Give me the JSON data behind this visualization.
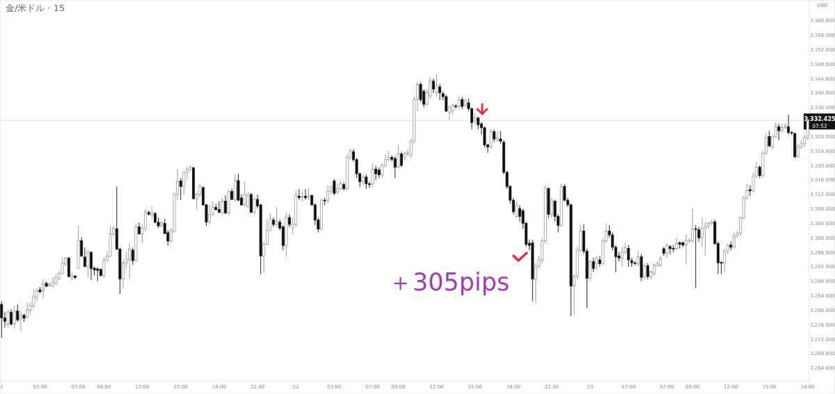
{
  "chart_data": {
    "type": "candlestick",
    "title": "金/米ドル · 15",
    "ylabel": "USD",
    "annotations": [
      "＋305pips",
      "07:52"
    ],
    "ylim": [
      3260.5,
      3365.7
    ],
    "yticks": [
      {
        "value": 3264,
        "label": "3,264.000"
      },
      {
        "value": 3268,
        "label": "3,268.000"
      },
      {
        "value": 3272,
        "label": "3,272.000"
      },
      {
        "value": 3276,
        "label": "3,276.000"
      },
      {
        "value": 3280,
        "label": "3,280.000"
      },
      {
        "value": 3284,
        "label": "3,284.000"
      },
      {
        "value": 3288,
        "label": "3,288.000"
      },
      {
        "value": 3292,
        "label": "3,292.000"
      },
      {
        "value": 3296,
        "label": "3,296.000"
      },
      {
        "value": 3300,
        "label": "3,300.000"
      },
      {
        "value": 3304,
        "label": "3,304.000"
      },
      {
        "value": 3308,
        "label": "3,308.000"
      },
      {
        "value": 3312,
        "label": "3,312.000"
      },
      {
        "value": 3316,
        "label": "3,316.000"
      },
      {
        "value": 3320,
        "label": "3,320.000"
      },
      {
        "value": 3324,
        "label": "3,324.000"
      },
      {
        "value": 3328,
        "label": "3,328.000"
      },
      {
        "value": 3336,
        "label": "3,336.000"
      },
      {
        "value": 3340,
        "label": "3,340.000"
      },
      {
        "value": 3344,
        "label": "3,344.000"
      },
      {
        "value": 3348,
        "label": "3,348.000"
      },
      {
        "value": 3352,
        "label": "3,352.000"
      },
      {
        "value": 3356,
        "label": "3,356.000"
      },
      {
        "value": 3360,
        "label": "3,360.000"
      }
    ],
    "ref_lines": [
      {
        "axis": "y",
        "value": 3332.425,
        "label": "3,332.425",
        "color": "#e0e0e0"
      }
    ],
    "categories": [
      "1",
      null,
      null,
      null,
      null,
      null,
      null,
      null,
      null,
      null,
      null,
      null,
      "03:00",
      null,
      null,
      null,
      null,
      null,
      null,
      null,
      null,
      null,
      null,
      null,
      "07:00",
      null,
      null,
      null,
      null,
      null,
      null,
      null,
      "09:00",
      null,
      null,
      null,
      null,
      null,
      null,
      null,
      null,
      null,
      null,
      null,
      "12:00",
      null,
      null,
      null,
      null,
      null,
      null,
      null,
      null,
      null,
      null,
      null,
      "15:00",
      null,
      null,
      null,
      null,
      null,
      null,
      null,
      null,
      null,
      null,
      null,
      "18:00",
      null,
      null,
      null,
      null,
      null,
      null,
      null,
      null,
      null,
      null,
      null,
      "21:00",
      null,
      null,
      null,
      null,
      null,
      null,
      null,
      null,
      null,
      null,
      null,
      "22",
      null,
      null,
      null,
      null,
      null,
      null,
      null,
      null,
      null,
      null,
      null,
      "03:00",
      null,
      null,
      null,
      null,
      null,
      null,
      null,
      null,
      null,
      null,
      null,
      "07:00",
      null,
      null,
      null,
      null,
      null,
      null,
      null,
      "09:00",
      null,
      null,
      null,
      null,
      null,
      null,
      null,
      null,
      null,
      null,
      null,
      "12:00",
      null,
      null,
      null,
      null,
      null,
      null,
      null,
      null,
      null,
      null,
      null,
      "15:00",
      null,
      null,
      null,
      null,
      null,
      null,
      null,
      null,
      null,
      null,
      null,
      "18:00",
      null,
      null,
      null,
      null,
      null,
      null,
      null,
      null,
      null,
      null,
      null,
      "21:00",
      null,
      null,
      null,
      null,
      null,
      null,
      null,
      null,
      null,
      null,
      null,
      "23",
      null,
      null,
      null,
      null,
      null,
      null,
      null,
      null,
      null,
      null,
      null,
      "03:00",
      null,
      null,
      null,
      null,
      null,
      null,
      null,
      null,
      null,
      null,
      null,
      "07:00",
      null,
      null,
      null,
      null,
      null,
      null,
      null,
      "09:00",
      null,
      null,
      null,
      null,
      null,
      null,
      null,
      null,
      null,
      null,
      null,
      "12:00",
      null,
      null,
      null,
      null,
      null,
      null,
      null,
      null,
      null,
      null,
      null,
      "15:00",
      null,
      null,
      null,
      null,
      null,
      null,
      null,
      null,
      null,
      null,
      null,
      "18:00"
    ],
    "ohlc": [
      [
        3281.6,
        3282.5,
        3272.3,
        3277.9
      ],
      [
        3277.9,
        3279.4,
        3275.2,
        3276.9
      ],
      [
        3276.2,
        3280.0,
        3275.2,
        3279.5
      ],
      [
        3279.4,
        3280.3,
        3275.8,
        3276.2
      ],
      [
        3276.2,
        3281.3,
        3274.9,
        3279.7
      ],
      [
        3279.8,
        3281.6,
        3276.8,
        3277.3
      ],
      [
        3277.6,
        3279.7,
        3274.2,
        3278.6
      ],
      [
        3278.6,
        3279.0,
        3276.8,
        3277.8
      ],
      [
        3278.1,
        3282.2,
        3277.8,
        3280.0
      ],
      [
        3280.0,
        3282.2,
        3278.7,
        3281.3
      ],
      [
        3281.1,
        3285.7,
        3280.6,
        3283.8
      ],
      [
        3283.5,
        3286.1,
        3282.5,
        3285.4
      ],
      [
        3285.6,
        3286.4,
        3284.6,
        3285.1
      ],
      [
        3285.4,
        3288.6,
        3283.2,
        3287.3
      ],
      [
        3287.4,
        3288.0,
        3286.4,
        3286.6
      ],
      [
        3286.8,
        3287.7,
        3286.4,
        3287.2
      ],
      [
        3286.6,
        3289.0,
        3286.4,
        3287.7
      ],
      [
        3287.4,
        3289.9,
        3287.0,
        3289.0
      ],
      [
        3288.6,
        3290.9,
        3288.3,
        3290.2
      ],
      [
        3290.2,
        3294.4,
        3289.9,
        3293.1
      ],
      [
        3292.8,
        3294.7,
        3292.2,
        3294.4
      ],
      [
        3294.4,
        3294.7,
        3289.0,
        3289.3
      ],
      [
        3289.1,
        3290.5,
        3288.3,
        3289.5
      ],
      [
        3289.5,
        3289.6,
        3288.6,
        3289.0
      ],
      [
        3291.5,
        3303.3,
        3291.5,
        3299.2
      ],
      [
        3299.2,
        3300.1,
        3294.7,
        3295.0
      ],
      [
        3294.7,
        3297.3,
        3291.8,
        3292.1
      ],
      [
        3292.1,
        3296.6,
        3289.0,
        3296.0
      ],
      [
        3296.0,
        3296.3,
        3288.3,
        3291.5
      ],
      [
        3291.6,
        3292.1,
        3289.6,
        3291.1
      ],
      [
        3291.4,
        3291.8,
        3288.0,
        3291.0
      ],
      [
        3291.3,
        3291.5,
        3289.3,
        3289.6
      ],
      [
        3289.6,
        3294.7,
        3289.0,
        3293.7
      ],
      [
        3293.7,
        3296.3,
        3293.4,
        3295.0
      ],
      [
        3295.0,
        3303.3,
        3294.7,
        3301.1
      ],
      [
        3301.1,
        3303.3,
        3300.5,
        3302.7
      ],
      [
        3302.5,
        3314.2,
        3296.6,
        3296.9
      ],
      [
        3296.9,
        3297.3,
        3284.5,
        3288.6
      ],
      [
        3288.6,
        3294.1,
        3286.1,
        3293.1
      ],
      [
        3293.1,
        3296.0,
        3291.5,
        3294.1
      ],
      [
        3294.1,
        3298.5,
        3288.6,
        3296.9
      ],
      [
        3296.6,
        3297.3,
        3292.5,
        3293.7
      ],
      [
        3293.7,
        3303.7,
        3293.4,
        3303.0
      ],
      [
        3303.0,
        3304.3,
        3300.8,
        3301.1
      ],
      [
        3301.1,
        3303.7,
        3298.5,
        3302.7
      ],
      [
        3302.7,
        3308.1,
        3301.8,
        3307.2
      ],
      [
        3307.0,
        3307.5,
        3306.2,
        3306.5
      ],
      [
        3306.2,
        3308.8,
        3305.3,
        3306.8
      ],
      [
        3306.7,
        3307.2,
        3304.0,
        3304.3
      ],
      [
        3304.3,
        3305.6,
        3302.7,
        3303.3
      ],
      [
        3303.3,
        3304.6,
        3303.0,
        3304.2
      ],
      [
        3304.0,
        3305.3,
        3301.0,
        3301.2
      ],
      [
        3301.4,
        3302.1,
        3297.9,
        3299.1
      ],
      [
        3299.1,
        3302.7,
        3298.5,
        3302.1
      ],
      [
        3301.8,
        3312.6,
        3301.4,
        3312.0
      ],
      [
        3312.0,
        3319.0,
        3310.4,
        3315.5
      ],
      [
        3315.7,
        3316.5,
        3310.4,
        3314.2
      ],
      [
        3314.2,
        3318.4,
        3312.0,
        3318.1
      ],
      [
        3318.1,
        3319.7,
        3316.1,
        3319.0
      ],
      [
        3319.0,
        3320.0,
        3318.4,
        3319.5
      ],
      [
        3319.3,
        3319.7,
        3310.7,
        3310.8
      ],
      [
        3310.8,
        3312.6,
        3307.8,
        3312.0
      ],
      [
        3312.0,
        3314.9,
        3311.3,
        3314.2
      ],
      [
        3313.9,
        3314.2,
        3308.8,
        3309.1
      ],
      [
        3309.1,
        3309.4,
        3303.3,
        3304.4
      ],
      [
        3304.4,
        3309.1,
        3303.7,
        3306.5
      ],
      [
        3306.5,
        3310.1,
        3306.2,
        3308.5
      ],
      [
        3308.4,
        3309.4,
        3307.5,
        3307.8
      ],
      [
        3307.8,
        3310.1,
        3306.9,
        3307.0
      ],
      [
        3306.9,
        3311.0,
        3306.5,
        3310.1
      ],
      [
        3310.1,
        3311.7,
        3306.5,
        3306.9
      ],
      [
        3306.9,
        3313.3,
        3306.2,
        3312.9
      ],
      [
        3312.8,
        3313.6,
        3310.4,
        3310.6
      ],
      [
        3310.6,
        3317.4,
        3310.1,
        3315.8
      ],
      [
        3315.8,
        3317.7,
        3310.1,
        3310.4
      ],
      [
        3311.0,
        3312.0,
        3308.8,
        3309.1
      ],
      [
        3309.1,
        3315.5,
        3308.5,
        3312.0
      ],
      [
        3308.8,
        3312.6,
        3308.1,
        3311.7
      ],
      [
        3312.0,
        3312.3,
        3306.9,
        3307.0
      ],
      [
        3307.0,
        3311.3,
        3306.5,
        3310.6
      ],
      [
        3310.6,
        3312.0,
        3308.1,
        3308.8
      ],
      [
        3309.1,
        3309.4,
        3289.9,
        3295.0
      ],
      [
        3295.0,
        3298.9,
        3290.2,
        3298.2
      ],
      [
        3298.2,
        3304.9,
        3297.9,
        3302.1
      ],
      [
        3302.1,
        3306.9,
        3301.8,
        3305.1
      ],
      [
        3304.9,
        3305.6,
        3303.0,
        3303.7
      ],
      [
        3303.7,
        3308.5,
        3303.0,
        3304.6
      ],
      [
        3304.3,
        3305.0,
        3302.0,
        3302.7
      ],
      [
        3303.0,
        3303.5,
        3296.5,
        3297.9
      ],
      [
        3297.9,
        3307.0,
        3294.7,
        3305.6
      ],
      [
        3305.6,
        3306.5,
        3303.0,
        3303.7
      ],
      [
        3302.7,
        3305.5,
        3301.0,
        3303.7
      ],
      [
        3303.7,
        3313.0,
        3303.0,
        3311.7
      ],
      [
        3311.5,
        3313.5,
        3310.5,
        3311.1
      ],
      [
        3311.1,
        3313.0,
        3310.0,
        3311.5
      ],
      [
        3311.5,
        3313.5,
        3310.5,
        3311.1
      ],
      [
        3311.2,
        3313.8,
        3310.5,
        3311.7
      ],
      [
        3311.7,
        3312.0,
        3308.8,
        3309.1
      ],
      [
        3309.1,
        3309.5,
        3303.5,
        3304.9
      ],
      [
        3304.9,
        3305.5,
        3301.5,
        3302.4
      ],
      [
        3302.4,
        3311.0,
        3302.0,
        3310.4
      ],
      [
        3310.4,
        3311.0,
        3309.0,
        3310.2
      ],
      [
        3310.4,
        3314.5,
        3309.5,
        3312.9
      ],
      [
        3312.9,
        3314.5,
        3312.0,
        3313.9
      ],
      [
        3315.7,
        3316.3,
        3311.8,
        3312.3
      ],
      [
        3312.6,
        3315.0,
        3312.0,
        3313.6
      ],
      [
        3313.6,
        3316.0,
        3313.0,
        3314.9
      ],
      [
        3314.7,
        3315.3,
        3313.0,
        3313.6
      ],
      [
        3313.6,
        3323.0,
        3313.0,
        3322.2
      ],
      [
        3322.2,
        3324.6,
        3321.5,
        3324.1
      ],
      [
        3323.8,
        3324.5,
        3321.0,
        3321.6
      ],
      [
        3321.6,
        3322.0,
        3316.5,
        3317.7
      ],
      [
        3317.7,
        3318.0,
        3314.0,
        3315.5
      ],
      [
        3315.5,
        3317.5,
        3314.5,
        3316.8
      ],
      [
        3316.8,
        3317.5,
        3313.5,
        3314.9
      ],
      [
        3314.9,
        3315.5,
        3313.8,
        3314.7
      ],
      [
        3314.9,
        3320.5,
        3314.0,
        3319.0
      ],
      [
        3319.0,
        3320.0,
        3316.0,
        3317.7
      ],
      [
        3318.7,
        3319.5,
        3316.5,
        3317.4
      ],
      [
        3317.4,
        3320.5,
        3316.5,
        3320.0
      ],
      [
        3320.0,
        3323.0,
        3319.5,
        3321.6
      ],
      [
        3321.6,
        3324.0,
        3321.0,
        3322.2
      ],
      [
        3322.2,
        3322.8,
        3321.0,
        3321.7
      ],
      [
        3321.9,
        3322.5,
        3316.5,
        3319.5
      ],
      [
        3319.5,
        3325.5,
        3319.0,
        3323.2
      ],
      [
        3323.2,
        3323.8,
        3319.5,
        3320.0
      ],
      [
        3322.2,
        3323.8,
        3321.5,
        3323.2
      ],
      [
        3323.2,
        3324.5,
        3322.5,
        3323.5
      ],
      [
        3322.9,
        3327.5,
        3322.0,
        3326.7
      ],
      [
        3326.7,
        3339.0,
        3326.0,
        3338.2
      ],
      [
        3338.2,
        3343.0,
        3335.0,
        3342.4
      ],
      [
        3342.4,
        3343.0,
        3337.5,
        3338.2
      ],
      [
        3340.5,
        3341.0,
        3336.0,
        3336.9
      ],
      [
        3336.9,
        3341.0,
        3336.5,
        3340.1
      ],
      [
        3339.2,
        3344.5,
        3338.5,
        3343.3
      ],
      [
        3343.3,
        3344.0,
        3340.0,
        3341.1
      ],
      [
        3340.1,
        3345.3,
        3339.0,
        3342.0
      ],
      [
        3341.7,
        3342.5,
        3338.0,
        3340.1
      ],
      [
        3339.8,
        3340.5,
        3338.0,
        3339.0
      ],
      [
        3339.0,
        3339.5,
        3334.8,
        3335.0
      ],
      [
        3334.7,
        3336.5,
        3332.5,
        3336.0
      ],
      [
        3335.0,
        3337.0,
        3334.0,
        3336.6
      ],
      [
        3336.4,
        3337.0,
        3335.8,
        3336.2
      ],
      [
        3336.3,
        3339.0,
        3335.8,
        3338.2
      ],
      [
        3338.2,
        3339.0,
        3335.5,
        3336.3
      ],
      [
        3336.6,
        3338.5,
        3336.0,
        3337.9
      ],
      [
        3337.3,
        3338.5,
        3335.0,
        3335.7
      ],
      [
        3335.7,
        3336.0,
        3330.0,
        3331.8
      ],
      [
        3332.4,
        3334.5,
        3331.5,
        3333.1
      ],
      [
        3333.1,
        3333.5,
        3330.0,
        3331.2
      ],
      [
        3331.5,
        3332.0,
        3328.5,
        3330.4
      ],
      [
        3330.4,
        3330.8,
        3325.0,
        3325.7
      ],
      [
        3325.7,
        3326.0,
        3323.5,
        3325.1
      ],
      [
        3325.1,
        3330.0,
        3324.5,
        3329.3
      ],
      [
        3329.3,
        3330.0,
        3326.5,
        3327.3
      ],
      [
        3327.0,
        3329.5,
        3326.5,
        3327.6
      ],
      [
        3327.3,
        3329.5,
        3326.0,
        3326.7
      ],
      [
        3326.4,
        3327.0,
        3317.5,
        3318.1
      ],
      [
        3318.1,
        3318.5,
        3313.5,
        3314.2
      ],
      [
        3314.2,
        3314.5,
        3309.5,
        3310.4
      ],
      [
        3310.4,
        3311.0,
        3306.5,
        3307.2
      ],
      [
        3305.9,
        3310.0,
        3305.5,
        3309.1
      ],
      [
        3308.1,
        3309.0,
        3304.5,
        3305.9
      ],
      [
        3307.5,
        3308.0,
        3302.5,
        3304.0
      ],
      [
        3304.0,
        3304.5,
        3297.5,
        3298.2
      ],
      [
        3298.5,
        3299.5,
        3296.5,
        3297.9
      ],
      [
        3298.6,
        3299.5,
        3282.5,
        3288.6
      ],
      [
        3288.6,
        3293.0,
        3281.9,
        3292.2
      ],
      [
        3292.2,
        3295.0,
        3291.5,
        3293.9
      ],
      [
        3293.9,
        3300.0,
        3293.0,
        3299.2
      ],
      [
        3299.2,
        3314.5,
        3298.5,
        3313.8
      ],
      [
        3313.6,
        3314.0,
        3305.5,
        3306.5
      ],
      [
        3306.5,
        3311.0,
        3305.5,
        3310.4
      ],
      [
        3310.1,
        3310.5,
        3304.5,
        3305.9
      ],
      [
        3305.9,
        3306.5,
        3301.5,
        3303.4
      ],
      [
        3303.4,
        3315.0,
        3303.0,
        3314.2
      ],
      [
        3314.2,
        3314.8,
        3310.0,
        3310.4
      ],
      [
        3310.4,
        3311.0,
        3308.5,
        3309.1
      ],
      [
        3309.1,
        3309.5,
        3278.4,
        3286.7
      ],
      [
        3286.7,
        3290.0,
        3278.7,
        3289.3
      ],
      [
        3289.3,
        3297.5,
        3288.5,
        3296.6
      ],
      [
        3296.6,
        3303.5,
        3296.0,
        3301.9
      ],
      [
        3301.9,
        3303.7,
        3295.5,
        3296.3
      ],
      [
        3296.3,
        3297.0,
        3280.6,
        3288.8
      ],
      [
        3288.8,
        3294.0,
        3288.0,
        3293.4
      ],
      [
        3293.4,
        3294.5,
        3290.5,
        3291.5
      ],
      [
        3292.8,
        3295.0,
        3291.0,
        3294.4
      ],
      [
        3293.9,
        3295.0,
        3292.0,
        3292.9
      ],
      [
        3292.9,
        3299.8,
        3292.5,
        3299.2
      ],
      [
        3299.2,
        3304.0,
        3298.5,
        3301.9
      ],
      [
        3301.9,
        3303.5,
        3300.0,
        3300.8
      ],
      [
        3300.8,
        3301.5,
        3296.5,
        3297.4
      ],
      [
        3297.4,
        3298.0,
        3290.5,
        3294.8
      ],
      [
        3295.0,
        3296.0,
        3293.5,
        3294.4
      ],
      [
        3294.4,
        3297.5,
        3292.0,
        3296.0
      ],
      [
        3296.0,
        3298.5,
        3295.5,
        3297.3
      ],
      [
        3297.1,
        3298.0,
        3292.0,
        3293.9
      ],
      [
        3293.7,
        3294.5,
        3292.0,
        3293.1
      ],
      [
        3293.1,
        3293.5,
        3292.5,
        3292.9
      ],
      [
        3292.9,
        3296.5,
        3292.0,
        3294.7
      ],
      [
        3294.8,
        3295.5,
        3288.0,
        3289.1
      ],
      [
        3289.1,
        3293.0,
        3288.5,
        3292.3
      ],
      [
        3292.3,
        3293.0,
        3288.5,
        3289.3
      ],
      [
        3289.3,
        3291.0,
        3288.5,
        3290.6
      ],
      [
        3290.2,
        3293.0,
        3289.5,
        3292.5
      ],
      [
        3292.3,
        3293.5,
        3292.0,
        3292.8
      ],
      [
        3292.5,
        3295.0,
        3292.0,
        3294.1
      ],
      [
        3297.0,
        3297.5,
        3295.0,
        3295.7
      ],
      [
        3295.7,
        3298.5,
        3294.5,
        3297.8
      ],
      [
        3297.6,
        3298.0,
        3295.5,
        3297.0
      ],
      [
        3297.1,
        3298.0,
        3296.0,
        3296.9
      ],
      [
        3297.0,
        3300.0,
        3296.5,
        3298.4
      ],
      [
        3298.7,
        3299.0,
        3297.0,
        3298.2
      ],
      [
        3298.6,
        3299.0,
        3297.5,
        3298.0
      ],
      [
        3298.0,
        3301.0,
        3292.8,
        3299.3
      ],
      [
        3299.1,
        3300.0,
        3298.5,
        3299.3
      ],
      [
        3299.2,
        3308.2,
        3298.5,
        3302.4
      ],
      [
        3302.5,
        3303.5,
        3286.1,
        3302.3
      ],
      [
        3302.2,
        3303.0,
        3299.0,
        3300.0
      ],
      [
        3300.0,
        3305.6,
        3297.5,
        3302.7
      ],
      [
        3302.7,
        3304.5,
        3295.0,
        3303.3
      ],
      [
        3303.3,
        3304.5,
        3302.5,
        3304.0
      ],
      [
        3304.0,
        3305.0,
        3303.5,
        3304.4
      ],
      [
        3304.4,
        3305.0,
        3298.0,
        3298.4
      ],
      [
        3298.4,
        3299.0,
        3290.0,
        3293.1
      ],
      [
        3293.2,
        3293.5,
        3290.0,
        3293.0
      ],
      [
        3293.0,
        3297.0,
        3290.5,
        3296.3
      ],
      [
        3296.3,
        3298.5,
        3295.5,
        3298.0
      ],
      [
        3298.0,
        3299.0,
        3296.5,
        3297.4
      ],
      [
        3297.4,
        3301.5,
        3297.0,
        3300.5
      ],
      [
        3300.5,
        3302.0,
        3300.0,
        3301.2
      ],
      [
        3301.2,
        3306.0,
        3300.5,
        3305.5
      ],
      [
        3305.5,
        3311.5,
        3305.0,
        3311.0
      ],
      [
        3311.0,
        3315.0,
        3310.5,
        3313.0
      ],
      [
        3313.3,
        3314.5,
        3311.5,
        3313.0
      ],
      [
        3313.0,
        3318.0,
        3312.5,
        3317.1
      ],
      [
        3317.1,
        3321.0,
        3316.5,
        3319.5
      ],
      [
        3319.5,
        3320.0,
        3316.5,
        3317.2
      ],
      [
        3317.2,
        3324.0,
        3316.5,
        3323.4
      ],
      [
        3323.4,
        3329.0,
        3323.0,
        3327.7
      ],
      [
        3328.0,
        3329.5,
        3325.0,
        3325.4
      ],
      [
        3325.1,
        3328.5,
        3324.5,
        3328.0
      ],
      [
        3328.0,
        3332.0,
        3327.5,
        3330.7
      ],
      [
        3330.7,
        3331.5,
        3327.0,
        3329.6
      ],
      [
        3329.6,
        3331.5,
        3329.0,
        3330.5
      ],
      [
        3330.5,
        3331.5,
        3330.0,
        3330.9
      ],
      [
        3330.7,
        3334.0,
        3328.5,
        3329.1
      ],
      [
        3329.1,
        3329.5,
        3328.5,
        3328.9
      ],
      [
        3328.8,
        3329.2,
        3322.0,
        3322.4
      ],
      [
        3322.4,
        3326.0,
        3322.0,
        3325.1
      ],
      [
        3325.1,
        3327.0,
        3324.5,
        3326.0
      ],
      [
        3326.0,
        3328.5,
        3325.0,
        3327.7
      ],
      [
        3327.7,
        3333.4,
        3327.0,
        3332.4
      ]
    ]
  }
}
